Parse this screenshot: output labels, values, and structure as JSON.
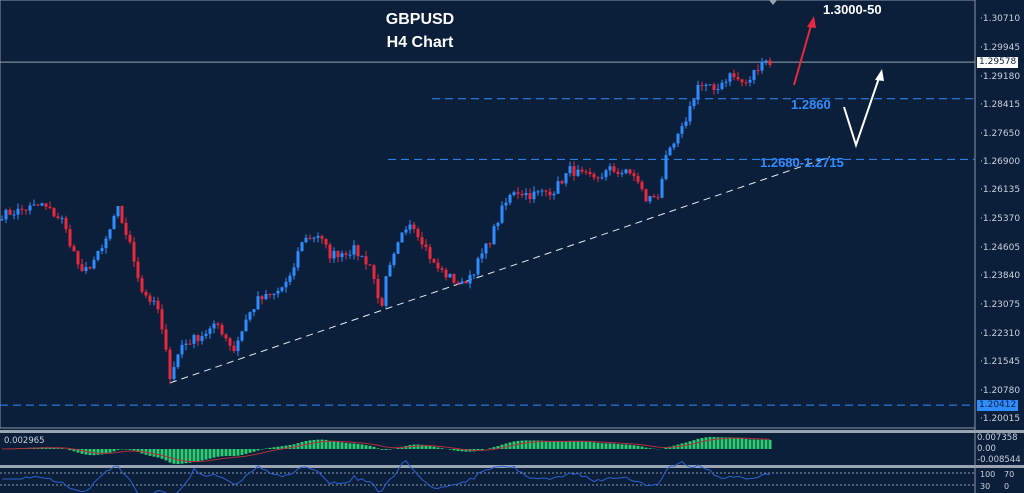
{
  "chart_data": {
    "type": "candlestick",
    "title": "GBPUSD",
    "subtitle": "H4 Chart",
    "ylim": [
      1.198,
      1.3124
    ],
    "y_ticks": [
      "1.30710",
      "1.29945",
      "1.29180",
      "1.28415",
      "1.27650",
      "1.26900",
      "1.26135",
      "1.25370",
      "1.24605",
      "1.23840",
      "1.23075",
      "1.22310",
      "1.21545",
      "1.20780",
      "1.20015"
    ],
    "current_price": "1.29578",
    "marked_level": "1.20412",
    "approx_close_path": [
      [
        0,
        1.255
      ],
      [
        10,
        1.2576
      ],
      [
        15,
        1.2536
      ],
      [
        20,
        1.2389
      ],
      [
        25,
        1.2456
      ],
      [
        29,
        1.2563
      ],
      [
        32,
        1.2469
      ],
      [
        35,
        1.2349
      ],
      [
        39,
        1.2296
      ],
      [
        42,
        1.2122
      ],
      [
        45,
        1.2202
      ],
      [
        50,
        1.2229
      ],
      [
        54,
        1.2255
      ],
      [
        58,
        1.2189
      ],
      [
        61,
        1.2269
      ],
      [
        64,
        1.2322
      ],
      [
        68,
        1.2336
      ],
      [
        72,
        1.2376
      ],
      [
        75,
        1.2483
      ],
      [
        79,
        1.2496
      ],
      [
        82,
        1.2443
      ],
      [
        88,
        1.2456
      ],
      [
        92,
        1.2416
      ],
      [
        95,
        1.2296
      ],
      [
        96,
        1.2376
      ],
      [
        100,
        1.2496
      ],
      [
        102,
        1.2536
      ],
      [
        105,
        1.2483
      ],
      [
        108,
        1.2416
      ],
      [
        111,
        1.2389
      ],
      [
        115,
        1.2362
      ],
      [
        118,
        1.2403
      ],
      [
        122,
        1.2483
      ],
      [
        125,
        1.2563
      ],
      [
        128,
        1.2616
      ],
      [
        132,
        1.2603
      ],
      [
        138,
        1.2616
      ],
      [
        142,
        1.267
      ],
      [
        148,
        1.2643
      ],
      [
        152,
        1.267
      ],
      [
        158,
        1.2657
      ],
      [
        161,
        1.259
      ],
      [
        164,
        1.2603
      ],
      [
        166,
        1.2697
      ],
      [
        170,
        1.2777
      ],
      [
        174,
        1.2897
      ],
      [
        178,
        1.2884
      ],
      [
        182,
        1.2924
      ],
      [
        186,
        1.2897
      ],
      [
        190,
        1.2964
      ],
      [
        192,
        1.2958
      ]
    ],
    "colors": {
      "up": "#2f8cff",
      "down": "#e8283c",
      "background": "#0b1f3a"
    },
    "annotations": {
      "target": "1.3000-50",
      "support1": "1.2860",
      "support2": "1.2680-1.2715"
    },
    "trendline": {
      "from": [
        42,
        1.2122
      ],
      "to": [
        207,
        1.2705
      ]
    },
    "macd": {
      "label": "0.002965",
      "ticks": [
        "0.007358",
        "0.00",
        "-0.008544"
      ]
    },
    "rsi": {
      "ticks": [
        "100",
        "70",
        "30",
        "0"
      ]
    }
  }
}
